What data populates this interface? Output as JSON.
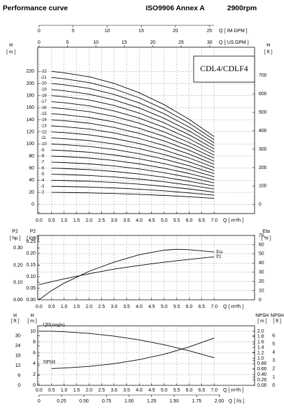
{
  "header": {
    "title": "Performance curve",
    "standard": "ISO9906 Annex A",
    "speed": "2900rpm"
  },
  "chart_data": [
    {
      "type": "line",
      "label": "CDL4/CDLF4",
      "grid": "y1",
      "x_label": "Q",
      "x_unit": "[ m³/h ]",
      "xlim": [
        0,
        7
      ],
      "xticks": [
        {
          "value": 0,
          "label": "0.0"
        },
        0.5,
        {
          "value": 1,
          "label": "1.0"
        },
        1.5,
        {
          "value": 2,
          "label": "2.0"
        },
        2.5,
        {
          "value": 3,
          "label": "3.0"
        },
        3.5,
        {
          "value": 4,
          "label": "4.0"
        },
        4.5,
        {
          "value": 5,
          "label": "5.0"
        },
        5.5,
        {
          "value": 6,
          "label": "6.0"
        },
        6.5,
        {
          "value": 7,
          "label": "7.0"
        }
      ],
      "top_axes": [
        {
          "label": "Q",
          "unit": "[ IM.GPM ]",
          "xlim": [
            0,
            25.7
          ],
          "xticks": [
            0,
            5,
            10,
            15,
            20,
            25
          ]
        },
        {
          "label": "Q",
          "unit": "[ US.GPM ]",
          "xlim": [
            0,
            30.8
          ],
          "xticks": [
            0,
            5,
            10,
            15,
            20,
            25,
            30
          ]
        }
      ],
      "yaxes": [
        {
          "side": "left",
          "label": "H",
          "unit": "[ m ]",
          "ylim": [
            -15,
            260
          ],
          "yticks": [
            0,
            20,
            40,
            60,
            80,
            100,
            120,
            140,
            160,
            180,
            200,
            220
          ]
        },
        {
          "side": "right",
          "label": "H",
          "unit": "[ ft ]",
          "ylim": [
            -49,
            853
          ],
          "yticks": [
            0,
            100,
            200,
            300,
            400,
            500,
            600,
            700
          ]
        }
      ],
      "x": [
        0.5,
        1,
        2,
        3,
        4,
        5,
        6,
        7
      ],
      "series": [
        {
          "name": "-2",
          "color": "#000000",
          "values": [
            20,
            19.8,
            19.2,
            18.2,
            16.8,
            15,
            12.8,
            10.2
          ]
        },
        {
          "name": "-3",
          "color": "#000000",
          "values": [
            30,
            29.7,
            28.8,
            27.3,
            25.2,
            22.5,
            19.2,
            15.3
          ]
        },
        {
          "name": "-4",
          "color": "#000000",
          "values": [
            40,
            39.6,
            38.4,
            36.4,
            33.6,
            30,
            25.6,
            20.4
          ]
        },
        {
          "name": "-5",
          "color": "#000000",
          "values": [
            50,
            49.5,
            48,
            45.5,
            42,
            37.5,
            32,
            25.5
          ]
        },
        {
          "name": "-6",
          "color": "#000000",
          "values": [
            60,
            59.4,
            57.6,
            54.6,
            50.4,
            45,
            38.4,
            30.6
          ]
        },
        {
          "name": "-7",
          "color": "#000000",
          "values": [
            70,
            69.3,
            67.2,
            63.7,
            58.8,
            52.5,
            44.8,
            35.7
          ]
        },
        {
          "name": "-8",
          "color": "#000000",
          "values": [
            80,
            79.2,
            76.8,
            72.8,
            67.2,
            60,
            51.2,
            40.8
          ]
        },
        {
          "name": "-9",
          "color": "#000000",
          "values": [
            90,
            89.1,
            86.4,
            81.9,
            75.6,
            67.5,
            57.6,
            45.9
          ]
        },
        {
          "name": "-10",
          "color": "#000000",
          "values": [
            100,
            99,
            96,
            91,
            84,
            75,
            64,
            51
          ]
        },
        {
          "name": "-11",
          "color": "#000000",
          "values": [
            110,
            108.9,
            105.6,
            100.1,
            92.4,
            82.5,
            70.4,
            56.1
          ]
        },
        {
          "name": "-12",
          "color": "#000000",
          "values": [
            120,
            118.8,
            115.2,
            109.2,
            100.8,
            90,
            76.8,
            61.2
          ]
        },
        {
          "name": "-13",
          "color": "#000000",
          "values": [
            130,
            128.7,
            124.8,
            118.3,
            109.2,
            97.5,
            83.2,
            66.3
          ]
        },
        {
          "name": "-14",
          "color": "#000000",
          "values": [
            140,
            138.6,
            134.4,
            127.4,
            117.6,
            105,
            89.6,
            71.4
          ]
        },
        {
          "name": "-15",
          "color": "#000000",
          "values": [
            150,
            148.5,
            144,
            136.5,
            126,
            112.5,
            96,
            76.5
          ]
        },
        {
          "name": "-16",
          "color": "#000000",
          "values": [
            160,
            158.4,
            153.6,
            145.6,
            134.4,
            120,
            102.4,
            81.6
          ]
        },
        {
          "name": "-17",
          "color": "#000000",
          "values": [
            170,
            168.3,
            163.2,
            154.7,
            142.8,
            127.5,
            108.8,
            86.7
          ]
        },
        {
          "name": "-18",
          "color": "#000000",
          "values": [
            180,
            178.2,
            172.8,
            163.8,
            151.2,
            135,
            115.2,
            91.8
          ]
        },
        {
          "name": "-19",
          "color": "#000000",
          "values": [
            190,
            188.1,
            182.4,
            172.9,
            159.6,
            142.5,
            121.6,
            96.9
          ]
        },
        {
          "name": "-20",
          "color": "#000000",
          "values": [
            200,
            198,
            192,
            182,
            168,
            150,
            128,
            102
          ]
        },
        {
          "name": "-21",
          "color": "#000000",
          "values": [
            210,
            207.9,
            201.6,
            191.1,
            176.4,
            157.5,
            134.4,
            107.1
          ]
        },
        {
          "name": "-22",
          "color": "#000000",
          "values": [
            220,
            217.8,
            211.2,
            200.2,
            184.8,
            165,
            140.8,
            112.2
          ]
        }
      ]
    },
    {
      "type": "line",
      "grid": "y3",
      "x_label": "Q",
      "x_unit": "[ m³/h ]",
      "xlim": [
        0,
        7
      ],
      "xticks": [
        {
          "value": 0,
          "label": "0.0"
        },
        0.5,
        {
          "value": 1,
          "label": "1.0"
        },
        1.5,
        {
          "value": 2,
          "label": "2.0"
        },
        2.5,
        {
          "value": 3,
          "label": "3.0"
        },
        3.5,
        {
          "value": 4,
          "label": "4.0"
        },
        4.5,
        {
          "value": 5,
          "label": "5.0"
        },
        5.5,
        {
          "value": 6,
          "label": "6.0"
        },
        6.5,
        {
          "value": 7,
          "label": "7.0"
        }
      ],
      "yaxes": [
        {
          "side": "left",
          "label": "P2",
          "unit": "[ hp ]",
          "ylim": [
            0,
            0.372
          ],
          "yticks": [
            {
              "value": 0,
              "label": "0.00"
            },
            {
              "value": 0.1,
              "label": "0.10"
            },
            {
              "value": 0.2,
              "label": "0.20"
            },
            {
              "value": 0.3,
              "label": "0.30"
            }
          ]
        },
        {
          "side": "left",
          "label": "P2",
          "unit": "[ kW ]",
          "ylim": [
            0,
            0.277
          ],
          "yticks": [
            {
              "value": 0,
              "label": "0.00"
            },
            0.05,
            {
              "value": 0.1,
              "label": "0.10"
            },
            0.15,
            {
              "value": 0.2,
              "label": "0.20"
            },
            0.25
          ]
        },
        {
          "side": "right",
          "label": "Eta",
          "unit": "[ % ]",
          "ylim": [
            0,
            70
          ],
          "yticks": [
            0,
            10,
            20,
            30,
            40,
            50,
            60,
            70
          ]
        }
      ],
      "x": [
        0,
        0.5,
        1,
        2,
        3,
        4,
        5,
        5.5,
        6,
        7
      ],
      "series": [
        {
          "name": "Eta",
          "color": "#000000",
          "axis": "y3",
          "values": [
            0,
            10,
            18,
            31,
            41,
            49,
            54,
            55,
            54.5,
            52
          ]
        },
        {
          "name": "P2",
          "color": "#000000",
          "axis": "y2",
          "values": [
            0.065,
            0.078,
            0.09,
            0.112,
            0.132,
            0.148,
            0.162,
            0.168,
            0.174,
            0.185
          ]
        }
      ]
    },
    {
      "type": "line",
      "grid": "y2",
      "x_label": "Q",
      "x_unit": "[ m³/h ]",
      "xlim": [
        0,
        7
      ],
      "xticks": [
        {
          "value": 0,
          "label": "0.0"
        },
        0.5,
        {
          "value": 1,
          "label": "1.0"
        },
        1.5,
        {
          "value": 2,
          "label": "2.0"
        },
        2.5,
        {
          "value": 3,
          "label": "3.0"
        },
        3.5,
        {
          "value": 4,
          "label": "4.0"
        },
        4.5,
        {
          "value": 5,
          "label": "5.0"
        },
        5.5,
        {
          "value": 6,
          "label": "6.0"
        },
        6.5,
        {
          "value": 7,
          "label": "7.0"
        }
      ],
      "bottom_axes": [
        {
          "label": "Q",
          "unit": "[ l/s ]",
          "xlim": [
            0,
            1.944
          ],
          "xticks": [
            0,
            0.25,
            {
              "value": 0.5,
              "label": "0.50"
            },
            0.75,
            {
              "value": 1,
              "label": "1.00"
            },
            1.25,
            {
              "value": 1.5,
              "label": "1.50"
            },
            1.75,
            {
              "value": 2,
              "label": "2.00"
            }
          ]
        }
      ],
      "yaxes": [
        {
          "side": "left",
          "label": "H",
          "unit": "[ ft ]",
          "ylim": [
            0,
            36.1
          ],
          "yticks": [
            0,
            6,
            12,
            18,
            24,
            30
          ]
        },
        {
          "side": "left",
          "label": "H",
          "unit": "[ m ]",
          "ylim": [
            0,
            11
          ],
          "yticks": [
            0,
            2,
            4,
            6,
            8,
            10
          ]
        },
        {
          "side": "right",
          "label": "NPSH",
          "unit": "[ m ]",
          "ylim": [
            0,
            2.2
          ],
          "yticks": [
            {
              "value": 0,
              "label": "0.00"
            },
            {
              "value": 0.2,
              "label": "0.20"
            },
            {
              "value": 0.4,
              "label": "0.40"
            },
            {
              "value": 0.6,
              "label": "0.60"
            },
            {
              "value": 0.8,
              "label": "0.80"
            },
            {
              "value": 1,
              "label": "1.0"
            },
            1.2,
            1.4,
            1.6,
            1.8,
            {
              "value": 2,
              "label": "2.0"
            }
          ]
        },
        {
          "side": "right",
          "label": "NPSH",
          "unit": "[ ft ]",
          "ylim": [
            0,
            7.22
          ],
          "yticks": [
            0,
            1,
            2,
            3,
            4,
            5,
            6
          ]
        }
      ],
      "x": [
        0,
        0.5,
        1,
        2,
        3,
        4,
        5,
        6,
        7
      ],
      "series": [
        {
          "name": "QH(single)",
          "color": "#000000",
          "axis": "y2",
          "values": [
            10,
            10,
            9.9,
            9.6,
            9.1,
            8.4,
            7.5,
            6.4,
            5.1
          ]
        },
        {
          "name": "NPSH",
          "color": "#000000",
          "axis": "y3",
          "values": [
            null,
            0.62,
            0.64,
            0.7,
            0.8,
            0.95,
            1.15,
            1.42,
            1.75
          ]
        }
      ]
    }
  ]
}
